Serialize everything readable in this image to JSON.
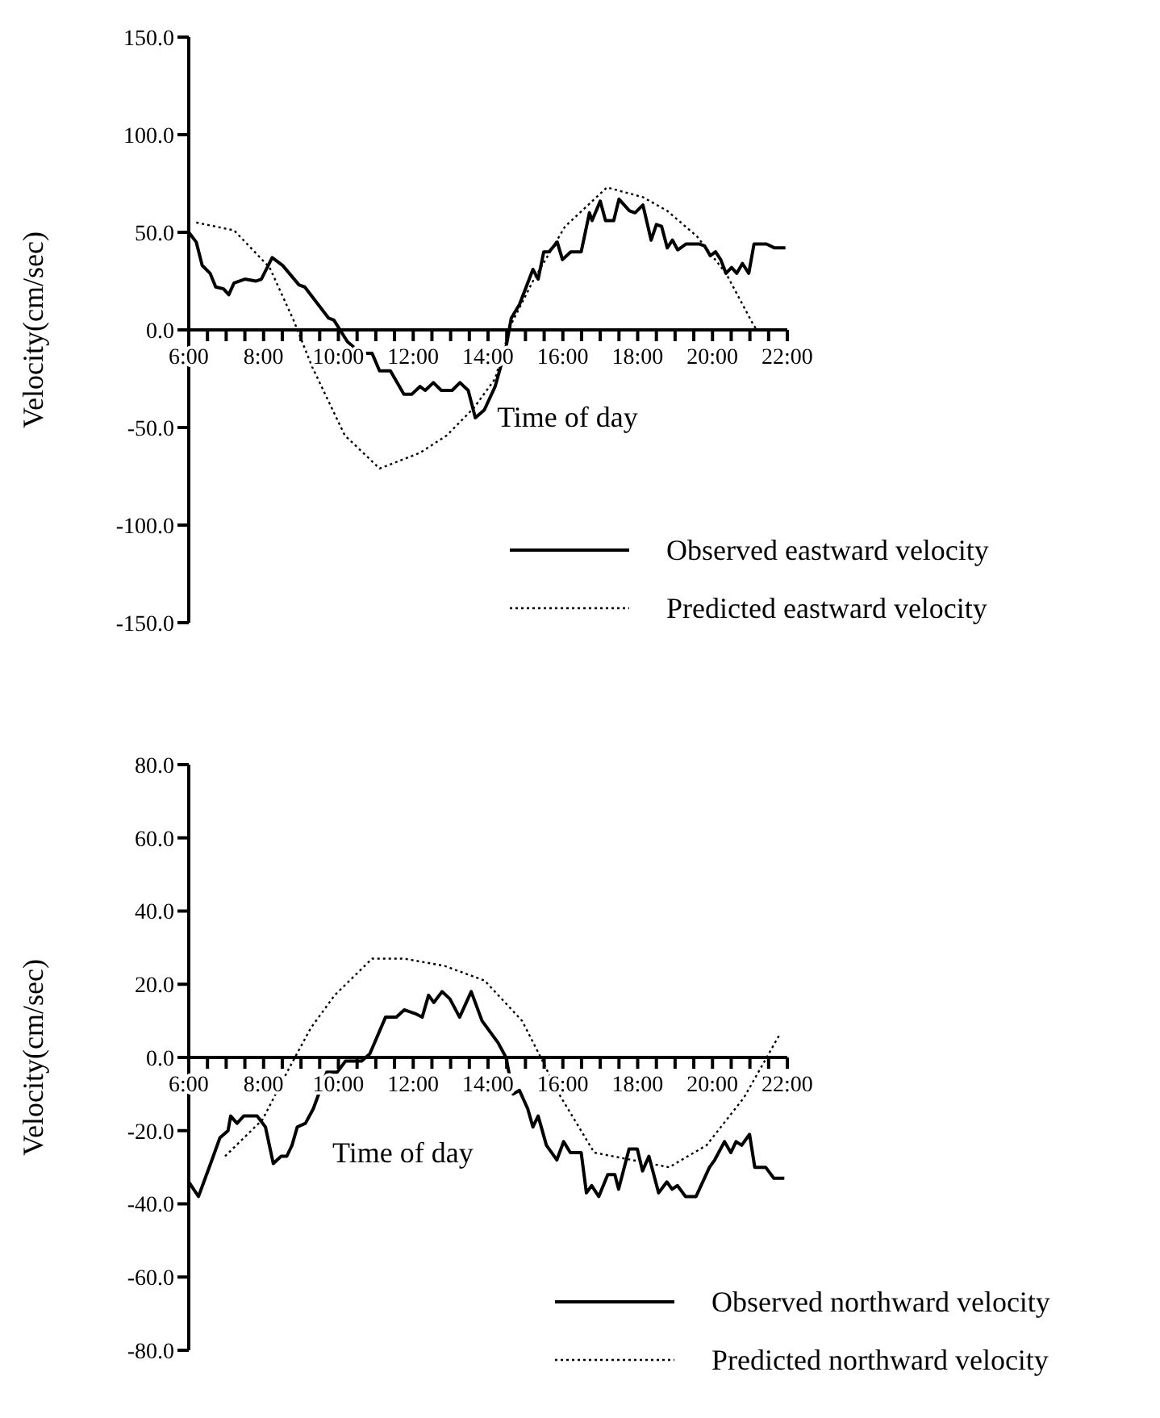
{
  "chart_data": [
    {
      "type": "line",
      "xlabel": "Time of day",
      "ylabel": "Velocity(cm/sec)",
      "xlim": [
        6,
        22
      ],
      "ylim": [
        -150,
        150
      ],
      "xticks": [
        {
          "value": 6,
          "label": "6:00"
        },
        {
          "value": 6.5,
          "label": null
        },
        {
          "value": 7,
          "label": null
        },
        {
          "value": 7.5,
          "label": null
        },
        {
          "value": 8,
          "label": "8:00"
        },
        {
          "value": 8.5,
          "label": null
        },
        {
          "value": 9,
          "label": null
        },
        {
          "value": 9.5,
          "label": null
        },
        {
          "value": 10,
          "label": "10:00"
        },
        {
          "value": 10.5,
          "label": null
        },
        {
          "value": 11,
          "label": null
        },
        {
          "value": 11.5,
          "label": null
        },
        {
          "value": 12,
          "label": "12:00"
        },
        {
          "value": 12.5,
          "label": null
        },
        {
          "value": 13,
          "label": null
        },
        {
          "value": 13.5,
          "label": null
        },
        {
          "value": 14,
          "label": "14:00"
        },
        {
          "value": 14.5,
          "label": null
        },
        {
          "value": 15,
          "label": null
        },
        {
          "value": 15.5,
          "label": null
        },
        {
          "value": 16,
          "label": "16:00"
        },
        {
          "value": 16.5,
          "label": null
        },
        {
          "value": 17,
          "label": null
        },
        {
          "value": 17.5,
          "label": null
        },
        {
          "value": 18,
          "label": "18:00"
        },
        {
          "value": 18.5,
          "label": null
        },
        {
          "value": 19,
          "label": null
        },
        {
          "value": 19.5,
          "label": null
        },
        {
          "value": 20,
          "label": "20:00"
        },
        {
          "value": 20.5,
          "label": null
        },
        {
          "value": 21,
          "label": null
        },
        {
          "value": 21.5,
          "label": null
        },
        {
          "value": 22,
          "label": "22:00"
        }
      ],
      "yticks": [
        {
          "value": -150,
          "label": "-150.0"
        },
        {
          "value": -100,
          "label": "-100.0"
        },
        {
          "value": -50,
          "label": "-50.0"
        },
        {
          "value": 0,
          "label": "0.0"
        },
        {
          "value": 50,
          "label": "50.0"
        },
        {
          "value": 100,
          "label": "100.0"
        },
        {
          "value": 150,
          "label": "150.0"
        }
      ],
      "grid": false,
      "legend": "bottom right",
      "marker": "none",
      "series": [
        {
          "name": "Observed eastward velocity",
          "color": "#000000",
          "line_style": "solid",
          "x": [
            6,
            6.2,
            6.36,
            6.57,
            6.72,
            6.93,
            7.07,
            7.21,
            7.5,
            7.8,
            7.94,
            8.23,
            8.51,
            8.95,
            9.1,
            9.74,
            9.88,
            10.24,
            10.6,
            10.9,
            11.1,
            11.39,
            11.75,
            11.96,
            12.18,
            12.32,
            12.54,
            12.75,
            13.04,
            13.25,
            13.47,
            13.66,
            13.9,
            14.19,
            14.48,
            14.62,
            14.84,
            15.2,
            15.34,
            15.49,
            15.63,
            15.85,
            15.99,
            16.21,
            16.49,
            16.71,
            16.78,
            17,
            17.14,
            17.36,
            17.5,
            17.78,
            17.93,
            18.14,
            18.36,
            18.5,
            18.64,
            18.79,
            18.93,
            19.07,
            19.29,
            19.65,
            19.79,
            19.94,
            20.08,
            20.22,
            20.36,
            20.51,
            20.65,
            20.8,
            20.97,
            21.11,
            21.44,
            21.66,
            21.95
          ],
          "values": [
            50,
            45,
            33,
            29,
            22,
            21,
            18,
            24,
            26,
            25,
            26,
            37,
            33,
            23,
            22,
            6,
            5,
            -6,
            -12,
            -12,
            -21,
            -21,
            -33,
            -33,
            -29,
            -31,
            -27,
            -31,
            -31,
            -27,
            -31,
            -45,
            -41,
            -29,
            -9,
            6,
            13,
            31,
            26,
            40,
            40,
            45,
            36,
            40,
            40,
            60,
            56,
            66,
            56,
            56,
            67,
            61,
            60,
            64,
            46,
            54,
            53,
            42,
            46,
            41,
            44,
            44,
            43,
            38,
            40,
            36,
            29,
            32,
            29,
            34,
            29,
            44,
            44,
            42,
            42
          ]
        },
        {
          "name": "Predicted eastward velocity",
          "color": "#000000",
          "line_style": "dotted",
          "x": [
            6.2,
            7.21,
            8.16,
            8.8,
            9.3,
            10.17,
            11.1,
            12.18,
            12.9,
            13.62,
            14.19,
            14.62,
            15.2,
            16.06,
            17.18,
            18.14,
            18.79,
            19.58,
            20.36,
            21.11,
            21.2
          ],
          "values": [
            55,
            51,
            32,
            5,
            -19,
            -54,
            -71,
            -63,
            -54,
            -40,
            -25,
            3,
            25,
            53,
            73,
            68,
            61,
            48,
            29,
            2,
            0
          ]
        }
      ]
    },
    {
      "type": "line",
      "xlabel": "Time of day",
      "ylabel": "Velocity(cm/sec)",
      "xlim": [
        6,
        22
      ],
      "ylim": [
        -80,
        80
      ],
      "xticks": [
        {
          "value": 6,
          "label": "6:00"
        },
        {
          "value": 6.5,
          "label": null
        },
        {
          "value": 7,
          "label": null
        },
        {
          "value": 7.5,
          "label": null
        },
        {
          "value": 8,
          "label": "8:00"
        },
        {
          "value": 8.5,
          "label": null
        },
        {
          "value": 9,
          "label": null
        },
        {
          "value": 9.5,
          "label": null
        },
        {
          "value": 10,
          "label": "10:00"
        },
        {
          "value": 10.5,
          "label": null
        },
        {
          "value": 11,
          "label": null
        },
        {
          "value": 11.5,
          "label": null
        },
        {
          "value": 12,
          "label": "12:00"
        },
        {
          "value": 12.5,
          "label": null
        },
        {
          "value": 13,
          "label": null
        },
        {
          "value": 13.5,
          "label": null
        },
        {
          "value": 14,
          "label": "14:00"
        },
        {
          "value": 14.5,
          "label": null
        },
        {
          "value": 15,
          "label": null
        },
        {
          "value": 15.5,
          "label": null
        },
        {
          "value": 16,
          "label": "16:00"
        },
        {
          "value": 16.5,
          "label": null
        },
        {
          "value": 17,
          "label": null
        },
        {
          "value": 17.5,
          "label": null
        },
        {
          "value": 18,
          "label": "18:00"
        },
        {
          "value": 18.5,
          "label": null
        },
        {
          "value": 19,
          "label": null
        },
        {
          "value": 19.5,
          "label": null
        },
        {
          "value": 20,
          "label": "20:00"
        },
        {
          "value": 20.5,
          "label": null
        },
        {
          "value": 21,
          "label": null
        },
        {
          "value": 21.5,
          "label": null
        },
        {
          "value": 22,
          "label": "22:00"
        }
      ],
      "yticks": [
        {
          "value": -80,
          "label": "-80.0"
        },
        {
          "value": -60,
          "label": "-60.0"
        },
        {
          "value": -40,
          "label": "-40.0"
        },
        {
          "value": -20,
          "label": "-20.0"
        },
        {
          "value": 0,
          "label": "0.0"
        },
        {
          "value": 20,
          "label": "20.0"
        },
        {
          "value": 40,
          "label": "40.0"
        },
        {
          "value": 60,
          "label": "60.0"
        },
        {
          "value": 80,
          "label": "80.0"
        }
      ],
      "grid": false,
      "legend": "bottom right",
      "marker": "none",
      "series": [
        {
          "name": "Observed northward velocity",
          "color": "#000000",
          "line_style": "solid",
          "x": [
            6,
            6.26,
            6.62,
            6.83,
            7.05,
            7.12,
            7.29,
            7.47,
            7.83,
            8.05,
            8.26,
            8.47,
            8.62,
            8.76,
            8.9,
            9.12,
            9.33,
            9.69,
            9.97,
            10.19,
            10.62,
            10.84,
            11.26,
            11.55,
            11.76,
            12.05,
            12.24,
            12.41,
            12.55,
            12.77,
            12.98,
            13.24,
            13.55,
            13.84,
            14.27,
            14.48,
            14.67,
            14.84,
            15.06,
            15.2,
            15.34,
            15.56,
            15.84,
            16.02,
            16.2,
            16.49,
            16.63,
            16.77,
            16.96,
            17.2,
            17.39,
            17.49,
            17.77,
            17.99,
            18.13,
            18.3,
            18.56,
            18.78,
            18.92,
            19.06,
            19.28,
            19.56,
            19.92,
            20.06,
            20.32,
            20.49,
            20.63,
            20.78,
            20.99,
            21.13,
            21.42,
            21.64,
            21.92
          ],
          "values": [
            -34,
            -38,
            -28,
            -22,
            -20,
            -16,
            -18,
            -16,
            -16,
            -19,
            -29,
            -27,
            -27,
            -24,
            -19,
            -18,
            -14,
            -4,
            -4,
            -1,
            -1,
            1,
            11,
            11,
            13,
            12,
            11,
            17,
            15,
            18,
            16,
            11,
            18,
            10,
            4,
            0,
            -10,
            -9,
            -14,
            -19,
            -16,
            -24,
            -28,
            -23,
            -26,
            -26,
            -37,
            -35,
            -38,
            -32,
            -32,
            -36,
            -25,
            -25,
            -31,
            -27,
            -37,
            -34,
            -36,
            -35,
            -38,
            -38,
            -30,
            -28,
            -23,
            -26,
            -23,
            -24,
            -21,
            -30,
            -30,
            -33,
            -33
          ]
        },
        {
          "name": "Predicted northward velocity",
          "color": "#000000",
          "line_style": "dotted",
          "x": [
            6.97,
            7.97,
            8.68,
            9.26,
            9.9,
            10.9,
            11.76,
            12.84,
            13.91,
            14.91,
            15.41,
            15.84,
            16.84,
            18.84,
            19.84,
            20.84,
            21.78
          ],
          "values": [
            -27,
            -17,
            -3,
            8,
            17,
            27,
            27,
            25,
            21,
            10,
            0,
            -9,
            -26,
            -30,
            -24,
            -11,
            6
          ]
        }
      ]
    }
  ]
}
